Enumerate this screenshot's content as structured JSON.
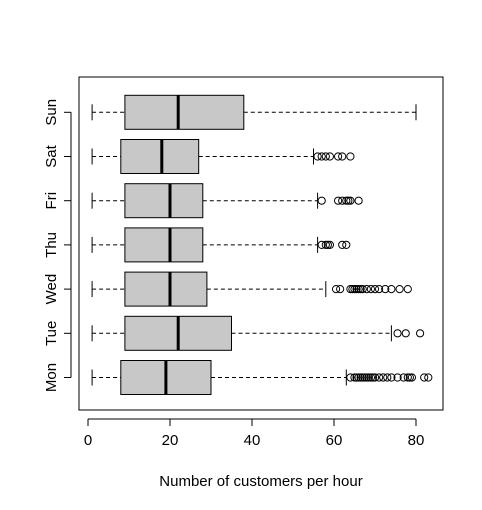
{
  "chart_data": {
    "type": "boxplot",
    "orientation": "horizontal",
    "title": "",
    "xlabel": "Number of customers per hour",
    "ylabel": "",
    "xlim": [
      -2,
      86
    ],
    "xticks": [
      0,
      20,
      40,
      60,
      80
    ],
    "categories": [
      "Mon",
      "Tue",
      "Wed",
      "Thu",
      "Fri",
      "Sat",
      "Sun"
    ],
    "box_fill": "#c8c8c8",
    "stroke_color": "#000000",
    "boxes": [
      {
        "label": "Mon",
        "whisker_low": 1,
        "q1": 8,
        "median": 19,
        "q3": 30,
        "whisker_high": 63,
        "outliers": [
          64,
          65,
          65.5,
          66,
          66.5,
          67,
          67.5,
          68,
          68.5,
          69,
          69.5,
          70,
          71,
          72,
          73,
          74,
          75.5,
          77,
          78,
          78.5,
          79,
          82,
          83
        ]
      },
      {
        "label": "Tue",
        "whisker_low": 1,
        "q1": 9,
        "median": 22,
        "q3": 35,
        "whisker_high": 74,
        "outliers": [
          75.5,
          77.5,
          81
        ]
      },
      {
        "label": "Wed",
        "whisker_low": 1,
        "q1": 9,
        "median": 20,
        "q3": 29,
        "whisker_high": 58,
        "outliers": [
          60.5,
          61.5,
          64,
          64.5,
          65,
          65.5,
          66,
          66.5,
          67,
          68,
          69,
          70,
          71,
          72.5,
          74,
          76,
          78
        ]
      },
      {
        "label": "Thu",
        "whisker_low": 1,
        "q1": 9,
        "median": 20,
        "q3": 28,
        "whisker_high": 56,
        "outliers": [
          57,
          58,
          58.5,
          59,
          62,
          63
        ]
      },
      {
        "label": "Fri",
        "whisker_low": 1,
        "q1": 9,
        "median": 20,
        "q3": 28,
        "whisker_high": 56,
        "outliers": [
          57,
          61,
          62,
          63,
          63.5,
          64,
          66
        ]
      },
      {
        "label": "Sat",
        "whisker_low": 1,
        "q1": 8,
        "median": 18,
        "q3": 27,
        "whisker_high": 55,
        "outliers": [
          56,
          57,
          58,
          59,
          61,
          62,
          64
        ]
      },
      {
        "label": "Sun",
        "whisker_low": 1,
        "q1": 9,
        "median": 22,
        "q3": 38,
        "whisker_high": 80,
        "outliers": []
      }
    ]
  }
}
